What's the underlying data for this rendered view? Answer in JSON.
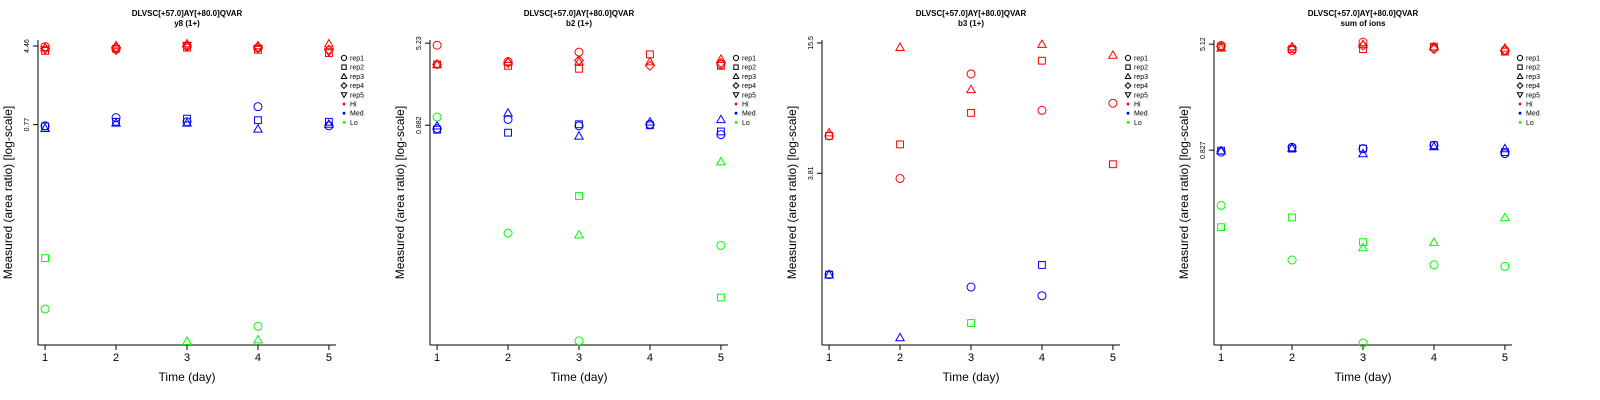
{
  "colors": {
    "Hi": "#ff0000",
    "Med": "#0000ff",
    "Lo": "#00ff00",
    "axis": "#000000"
  },
  "chart_data": [
    {
      "type": "scatter",
      "title": "DLVSC[+57.0]AY[+80.0]QVAR",
      "subtitle": "y8 (1+)",
      "xlabel": "Time (day)",
      "ylabel": "Measured (area ratio) [log-scale]",
      "log_y": true,
      "xlim": [
        0.9,
        5.1
      ],
      "ylim": [
        0.0056,
        5.1
      ],
      "x_ticks": [
        1,
        2,
        3,
        4,
        5
      ],
      "y_ticks": [
        {
          "value": 4.46,
          "label": "4.46"
        },
        {
          "value": 0.77,
          "label": "0.77"
        }
      ],
      "legend": [
        "rep1",
        "rep2",
        "rep3",
        "rep4",
        "rep5",
        "Hi",
        "Med",
        "Lo"
      ],
      "legend_position": "right",
      "series": [
        {
          "group": "Hi",
          "rep": "rep1",
          "points": [
            [
              1,
              4.4
            ],
            [
              2,
              4.15
            ],
            [
              3,
              4.5
            ],
            [
              4,
              4.3
            ]
          ]
        },
        {
          "group": "Hi",
          "rep": "rep2",
          "points": [
            [
              1,
              4.0
            ],
            [
              2,
              4.2
            ],
            [
              3,
              4.3
            ],
            [
              4,
              4.1
            ],
            [
              5,
              3.8
            ]
          ]
        },
        {
          "group": "Hi",
          "rep": "rep3",
          "points": [
            [
              1,
              4.3
            ],
            [
              2,
              4.5
            ],
            [
              3,
              4.7
            ],
            [
              4,
              4.5
            ],
            [
              5,
              4.7
            ]
          ]
        },
        {
          "group": "Hi",
          "rep": "rep4",
          "points": [
            [
              1,
              4.2
            ],
            [
              2,
              4.3
            ],
            [
              3,
              4.4
            ],
            [
              4,
              4.3
            ],
            [
              5,
              4.1
            ]
          ]
        },
        {
          "group": "Hi",
          "rep": "rep5",
          "points": [
            [
              1,
              4.1
            ],
            [
              2,
              4.05
            ],
            [
              3,
              4.5
            ],
            [
              4,
              4.2
            ],
            [
              5,
              3.9
            ]
          ]
        },
        {
          "group": "Med",
          "rep": "rep1",
          "points": [
            [
              1,
              0.75
            ],
            [
              2,
              0.9
            ],
            [
              3,
              0.82
            ],
            [
              4,
              1.15
            ],
            [
              5,
              0.75
            ]
          ]
        },
        {
          "group": "Med",
          "rep": "rep2",
          "points": [
            [
              1,
              0.74
            ],
            [
              2,
              0.82
            ],
            [
              3,
              0.88
            ],
            [
              4,
              0.85
            ],
            [
              5,
              0.82
            ]
          ]
        },
        {
          "group": "Med",
          "rep": "rep3",
          "points": [
            [
              1,
              0.71
            ],
            [
              2,
              0.8
            ],
            [
              3,
              0.8
            ],
            [
              4,
              0.7
            ],
            [
              5,
              0.78
            ]
          ]
        },
        {
          "group": "Lo",
          "rep": "rep1",
          "points": [
            [
              1,
              0.0125
            ],
            [
              4,
              0.0085
            ]
          ]
        },
        {
          "group": "Lo",
          "rep": "rep2",
          "points": [
            [
              1,
              0.039
            ]
          ]
        },
        {
          "group": "Lo",
          "rep": "rep3",
          "points": [
            [
              3,
              0.0061
            ],
            [
              4,
              0.0063
            ]
          ]
        }
      ]
    },
    {
      "type": "scatter",
      "title": "DLVSC[+57.0]AY[+80.0]QVAR",
      "subtitle": "b2 (1+)",
      "xlabel": "Time (day)",
      "ylabel": "Measured (area ratio) [log-scale]",
      "log_y": true,
      "xlim": [
        0.9,
        5.1
      ],
      "ylim": [
        0.0075,
        5.6
      ],
      "x_ticks": [
        1,
        2,
        3,
        4,
        5
      ],
      "y_ticks": [
        {
          "value": 5.23,
          "label": "5.23"
        },
        {
          "value": 0.882,
          "label": "0.882"
        }
      ],
      "legend": [
        "rep1",
        "rep2",
        "rep3",
        "rep4",
        "rep5",
        "Hi",
        "Med",
        "Lo"
      ],
      "legend_position": "right",
      "series": [
        {
          "group": "Hi",
          "rep": "rep1",
          "points": [
            [
              1,
              5.0
            ],
            [
              2,
              3.5
            ],
            [
              3,
              4.3
            ],
            [
              5,
              3.3
            ]
          ]
        },
        {
          "group": "Hi",
          "rep": "rep2",
          "points": [
            [
              1,
              3.3
            ],
            [
              2,
              3.2
            ],
            [
              3,
              3.0
            ],
            [
              4,
              4.1
            ],
            [
              5,
              3.2
            ]
          ]
        },
        {
          "group": "Hi",
          "rep": "rep3",
          "points": [
            [
              1,
              3.3
            ],
            [
              2,
              3.5
            ],
            [
              3,
              3.5
            ],
            [
              4,
              3.5
            ],
            [
              5,
              3.7
            ]
          ]
        },
        {
          "group": "Hi",
          "rep": "rep4",
          "points": [
            [
              1,
              3.3
            ],
            [
              2,
              3.4
            ],
            [
              3,
              3.6
            ],
            [
              4,
              3.2
            ],
            [
              5,
              3.4
            ]
          ]
        },
        {
          "group": "Med",
          "rep": "rep1",
          "points": [
            [
              1,
              0.82
            ],
            [
              2,
              1.0
            ],
            [
              3,
              0.87
            ],
            [
              4,
              0.9
            ],
            [
              5,
              0.72
            ]
          ]
        },
        {
          "group": "Med",
          "rep": "rep2",
          "points": [
            [
              1,
              0.8
            ],
            [
              2,
              0.75
            ],
            [
              3,
              0.9
            ],
            [
              4,
              0.88
            ],
            [
              5,
              0.77
            ]
          ]
        },
        {
          "group": "Med",
          "rep": "rep3",
          "points": [
            [
              1,
              0.87
            ],
            [
              2,
              1.15
            ],
            [
              3,
              0.7
            ],
            [
              4,
              0.95
            ],
            [
              5,
              1.0
            ]
          ]
        },
        {
          "group": "Lo",
          "rep": "rep1",
          "points": [
            [
              1,
              1.05
            ],
            [
              2,
              0.085
            ],
            [
              3,
              0.0082
            ],
            [
              5,
              0.065
            ]
          ]
        },
        {
          "group": "Lo",
          "rep": "rep2",
          "points": [
            [
              3,
              0.19
            ],
            [
              5,
              0.021
            ]
          ]
        },
        {
          "group": "Lo",
          "rep": "rep3",
          "points": [
            [
              3,
              0.082
            ],
            [
              5,
              0.4
            ]
          ]
        }
      ]
    },
    {
      "type": "scatter",
      "title": "DLVSC[+57.0]AY[+80.0]QVAR",
      "subtitle": "b3 (1+)",
      "xlabel": "Time (day)",
      "ylabel": "Measured (area ratio) [log-scale]",
      "log_y": true,
      "xlim": [
        0.9,
        5.1
      ],
      "ylim": [
        0.6,
        16.0
      ],
      "x_ticks": [
        1,
        2,
        3,
        4,
        5
      ],
      "y_ticks": [
        {
          "value": 15.5,
          "label": "15.5"
        },
        {
          "value": 3.81,
          "label": "3.81"
        }
      ],
      "legend": [
        "rep1",
        "rep2",
        "rep3",
        "rep4",
        "rep5",
        "Hi",
        "Med",
        "Lo"
      ],
      "legend_position": "right",
      "series": [
        {
          "group": "Hi",
          "rep": "rep1",
          "points": [
            [
              1,
              5.7
            ],
            [
              2,
              3.6
            ],
            [
              3,
              11.1
            ],
            [
              4,
              7.5
            ],
            [
              5,
              8.1
            ]
          ]
        },
        {
          "group": "Hi",
          "rep": "rep2",
          "points": [
            [
              1,
              5.7
            ],
            [
              2,
              5.2
            ],
            [
              3,
              7.3
            ],
            [
              4,
              12.8
            ],
            [
              5,
              4.2
            ]
          ]
        },
        {
          "group": "Hi",
          "rep": "rep3",
          "points": [
            [
              1,
              5.9
            ],
            [
              2,
              14.8
            ],
            [
              3,
              9.4
            ],
            [
              4,
              15.3
            ],
            [
              5,
              13.6
            ]
          ]
        },
        {
          "group": "Med",
          "rep": "rep1",
          "points": [
            [
              1,
              1.28
            ],
            [
              3,
              1.12
            ],
            [
              4,
              1.02
            ]
          ]
        },
        {
          "group": "Med",
          "rep": "rep2",
          "points": [
            [
              1,
              1.28
            ],
            [
              4,
              1.42
            ]
          ]
        },
        {
          "group": "Med",
          "rep": "rep3",
          "points": [
            [
              1,
              1.28
            ],
            [
              2,
              0.65
            ]
          ]
        },
        {
          "group": "Lo",
          "rep": "rep2",
          "points": [
            [
              3,
              0.76
            ]
          ]
        }
      ]
    },
    {
      "type": "scatter",
      "title": "DLVSC[+57.0]AY[+80.0]QVAR",
      "subtitle": "sum of ions",
      "xlabel": "Time (day)",
      "ylabel": "Measured (area ratio) [log-scale]",
      "log_y": true,
      "xlim": [
        0.9,
        5.1
      ],
      "ylim": [
        0.029,
        5.5
      ],
      "x_ticks": [
        1,
        2,
        3,
        4,
        5
      ],
      "y_ticks": [
        {
          "value": 5.12,
          "label": "5.12"
        },
        {
          "value": 0.827,
          "label": "0.827"
        }
      ],
      "legend": [
        "rep1",
        "rep2",
        "rep3",
        "rep4",
        "rep5",
        "Hi",
        "Med",
        "Lo"
      ],
      "legend_position": "right",
      "series": [
        {
          "group": "Hi",
          "rep": "rep1",
          "points": [
            [
              1,
              5.0
            ],
            [
              2,
              4.6
            ],
            [
              3,
              5.3
            ],
            [
              4,
              4.8
            ],
            [
              5,
              4.6
            ]
          ]
        },
        {
          "group": "Hi",
          "rep": "rep2",
          "points": [
            [
              1,
              4.9
            ],
            [
              2,
              4.7
            ],
            [
              3,
              4.7
            ],
            [
              4,
              4.9
            ],
            [
              5,
              4.5
            ]
          ]
        },
        {
          "group": "Hi",
          "rep": "rep3",
          "points": [
            [
              1,
              4.8
            ],
            [
              2,
              4.9
            ],
            [
              3,
              5.1
            ],
            [
              4,
              4.9
            ],
            [
              5,
              4.8
            ]
          ]
        },
        {
          "group": "Hi",
          "rep": "rep4",
          "points": [
            [
              1,
              4.9
            ],
            [
              2,
              4.8
            ],
            [
              3,
              5.0
            ],
            [
              4,
              4.7
            ],
            [
              5,
              4.6
            ]
          ]
        },
        {
          "group": "Med",
          "rep": "rep1",
          "points": [
            [
              1,
              0.8
            ],
            [
              2,
              0.87
            ],
            [
              3,
              0.85
            ],
            [
              4,
              0.9
            ],
            [
              5,
              0.78
            ]
          ]
        },
        {
          "group": "Med",
          "rep": "rep2",
          "points": [
            [
              1,
              0.82
            ],
            [
              2,
              0.85
            ],
            [
              3,
              0.85
            ],
            [
              4,
              0.9
            ],
            [
              5,
              0.8
            ]
          ]
        },
        {
          "group": "Med",
          "rep": "rep3",
          "points": [
            [
              1,
              0.82
            ],
            [
              2,
              0.86
            ],
            [
              3,
              0.78
            ],
            [
              4,
              0.88
            ],
            [
              5,
              0.85
            ]
          ]
        },
        {
          "group": "Lo",
          "rep": "rep1",
          "points": [
            [
              1,
              0.32
            ],
            [
              2,
              0.125
            ],
            [
              3,
              0.03
            ],
            [
              4,
              0.115
            ],
            [
              5,
              0.112
            ]
          ]
        },
        {
          "group": "Lo",
          "rep": "rep2",
          "points": [
            [
              1,
              0.22
            ],
            [
              2,
              0.26
            ],
            [
              3,
              0.17
            ]
          ]
        },
        {
          "group": "Lo",
          "rep": "rep3",
          "points": [
            [
              3,
              0.155
            ],
            [
              4,
              0.17
            ],
            [
              5,
              0.26
            ]
          ]
        }
      ]
    }
  ]
}
